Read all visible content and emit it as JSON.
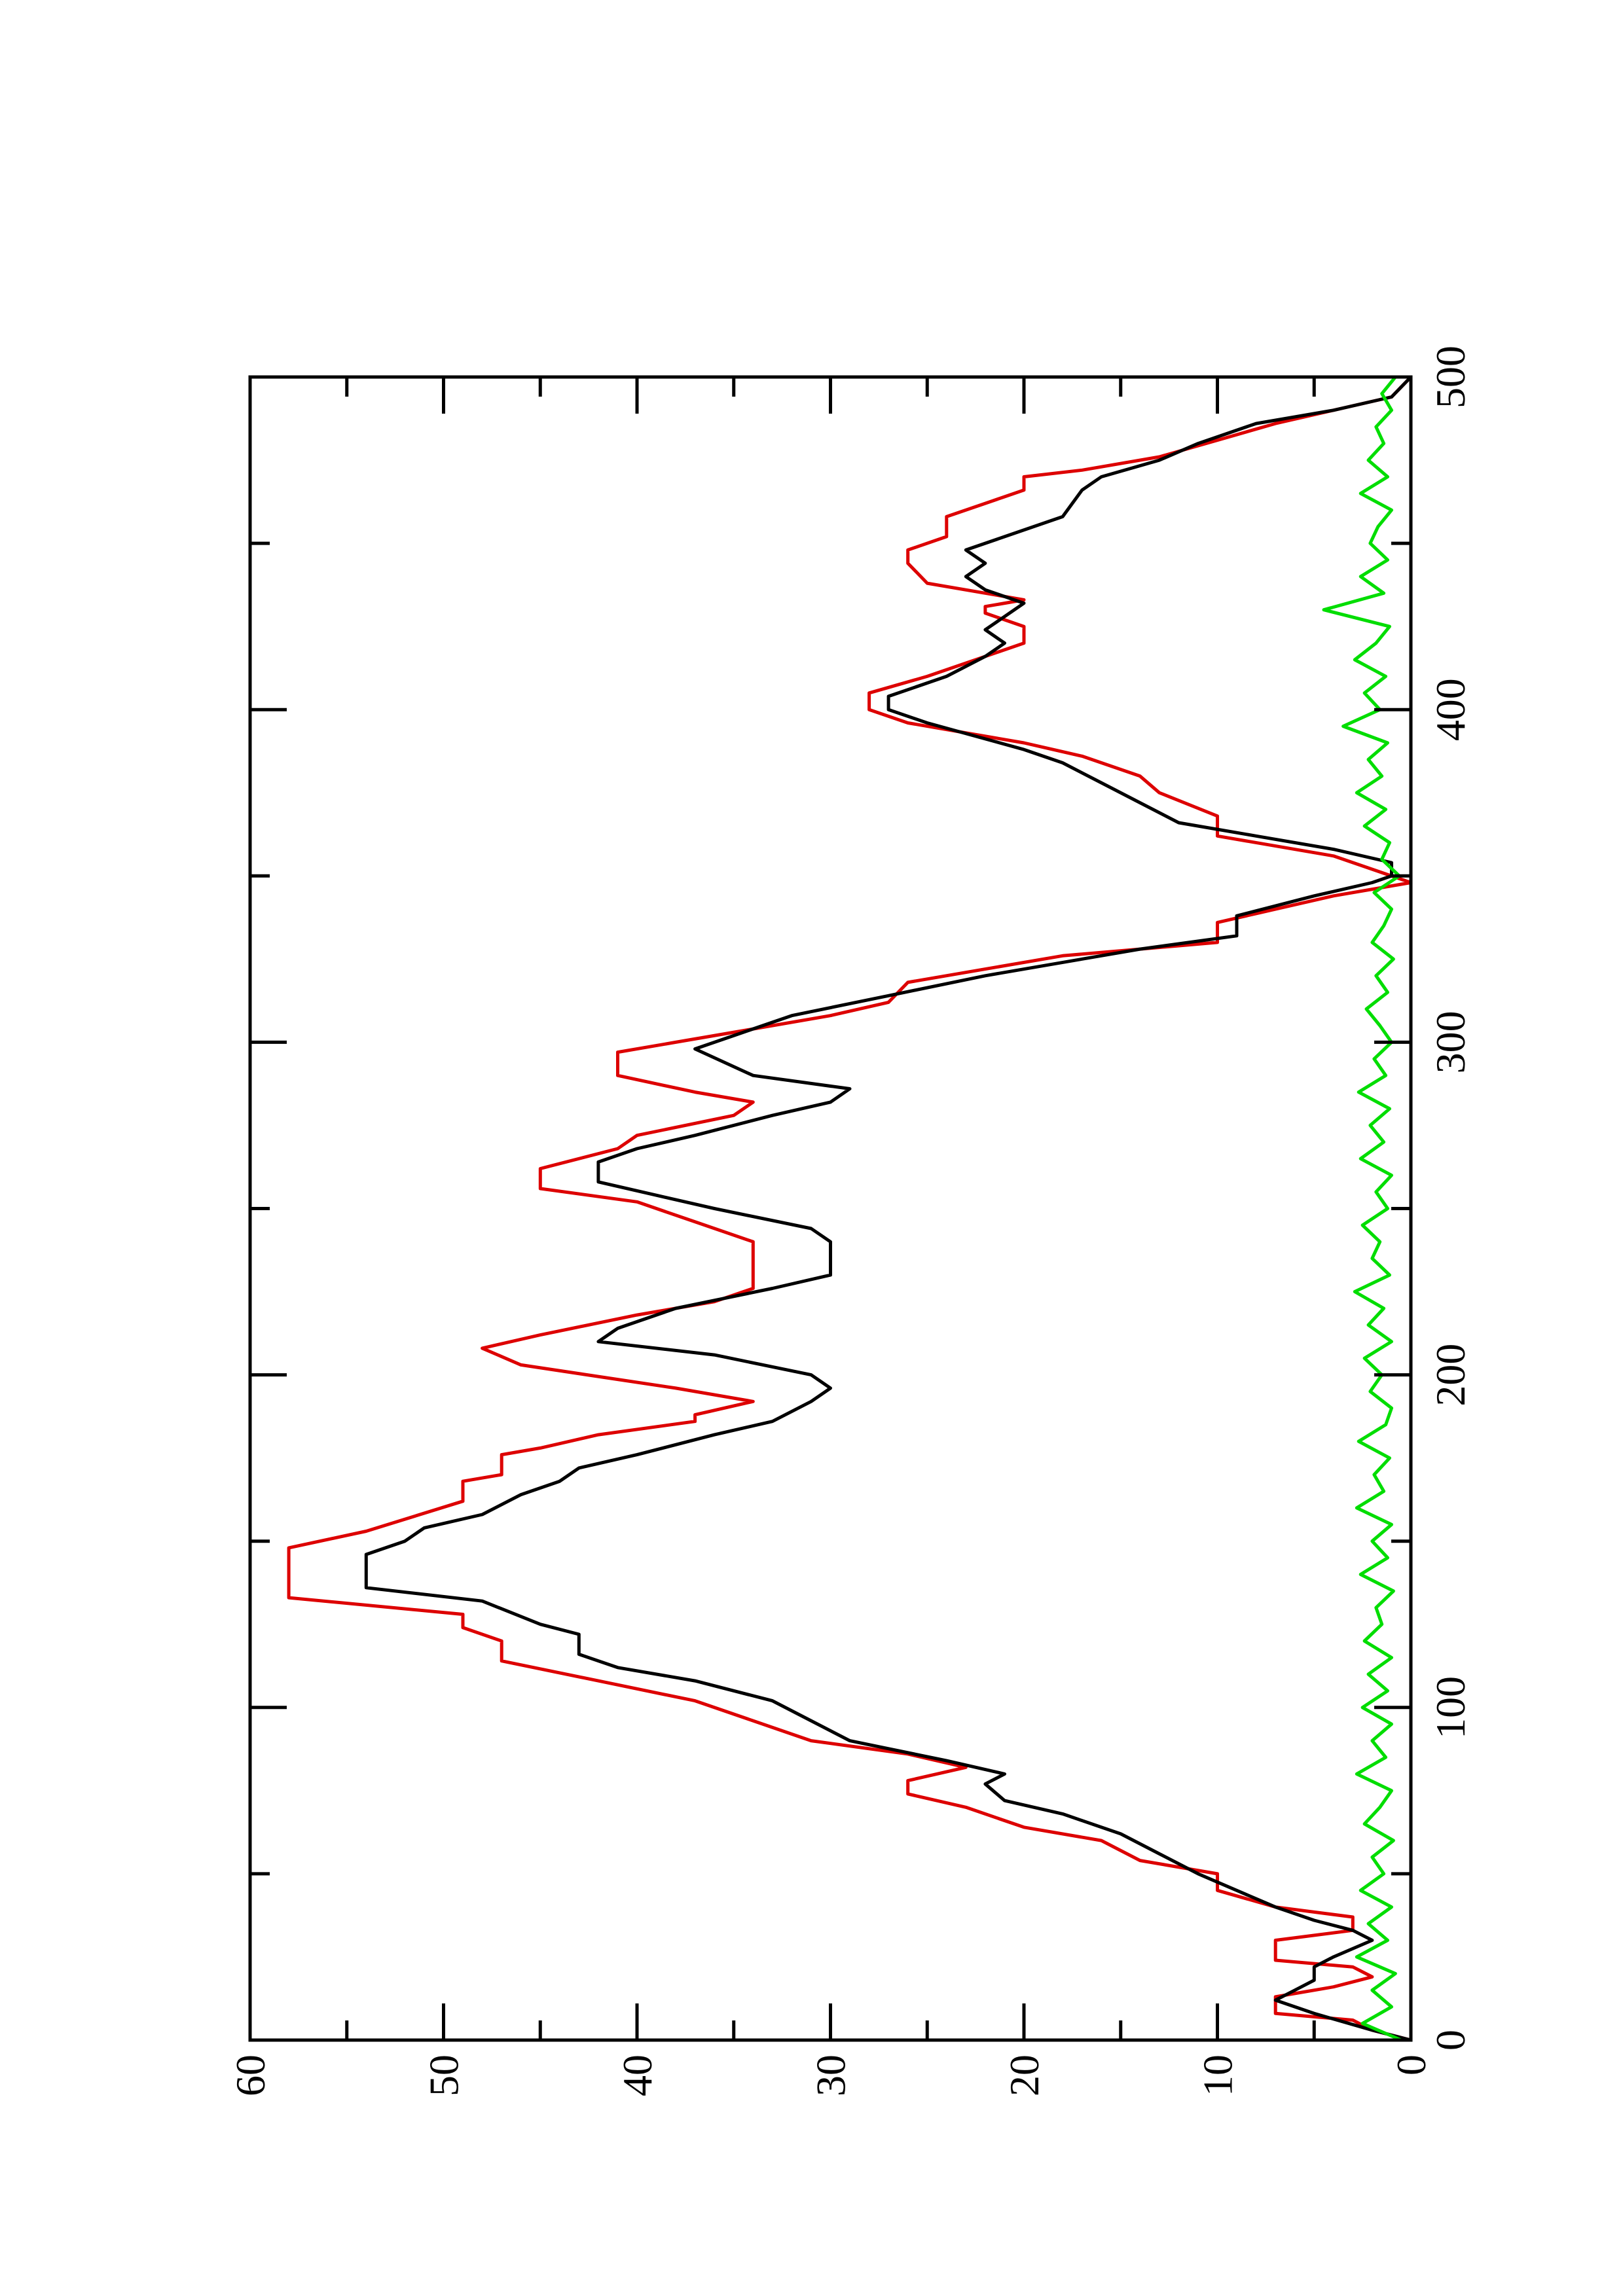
{
  "chart_data": {
    "type": "line",
    "xlim": [
      0,
      500
    ],
    "ylim": [
      0,
      60
    ],
    "xticks": [
      0,
      100,
      200,
      300,
      400,
      500
    ],
    "xminorticks": [
      50,
      150,
      250,
      350,
      450
    ],
    "yticks": [
      0,
      10,
      20,
      30,
      40,
      50,
      60
    ],
    "yminorticks": [
      5,
      15,
      25,
      35,
      45,
      55
    ],
    "series": [
      {
        "color": "#dd0000",
        "x": [
          0,
          3,
          6,
          8,
          13,
          16,
          19,
          22,
          24,
          30,
          33,
          37,
          40,
          45,
          50,
          54,
          60,
          64,
          70,
          74,
          78,
          82,
          86,
          90,
          96,
          102,
          108,
          114,
          120,
          124,
          128,
          133,
          148,
          153,
          162,
          168,
          170,
          176,
          178,
          182,
          186,
          188,
          192,
          196,
          203,
          208,
          212,
          218,
          222,
          226,
          240,
          246,
          252,
          256,
          262,
          268,
          272,
          278,
          282,
          285,
          290,
          297,
          300,
          304,
          308,
          312,
          318,
          326,
          330,
          336,
          340,
          344,
          348,
          352,
          356,
          362,
          368,
          375,
          380,
          386,
          390,
          396,
          400,
          405,
          410,
          420,
          425,
          429,
          431,
          433,
          435,
          438,
          444,
          448,
          452,
          458,
          462,
          466,
          470,
          472,
          476,
          481,
          486,
          490,
          494,
          500
        ],
        "values": [
          0,
          2,
          3,
          7,
          7,
          4,
          2,
          3,
          7,
          7,
          3,
          3,
          7,
          10,
          10,
          14,
          16,
          20,
          23,
          26,
          26,
          23,
          26,
          31,
          34,
          37,
          42,
          47,
          47,
          49,
          49,
          58,
          58,
          54,
          49,
          49,
          47,
          47,
          45,
          42,
          37,
          37,
          34,
          38,
          46,
          48,
          45,
          40,
          36,
          34,
          34,
          37,
          40,
          45,
          45,
          41,
          40,
          35,
          34,
          37,
          41,
          41,
          38,
          34,
          30,
          27,
          26,
          18,
          10,
          10,
          7,
          4,
          0,
          2,
          4,
          10,
          10,
          13,
          14,
          17,
          20,
          26,
          28,
          28,
          25,
          20,
          20,
          22,
          22,
          20,
          22,
          25,
          26,
          26,
          24,
          24,
          22,
          20,
          20,
          17,
          13,
          10,
          7,
          4,
          1,
          0
        ]
      },
      {
        "color": "#000000",
        "x": [
          0,
          3,
          8,
          12,
          15,
          18,
          22,
          25,
          30,
          33,
          36,
          40,
          45,
          50,
          56,
          62,
          68,
          72,
          77,
          80,
          84,
          90,
          96,
          102,
          108,
          112,
          116,
          122,
          125,
          132,
          136,
          146,
          150,
          154,
          158,
          164,
          168,
          172,
          176,
          182,
          186,
          192,
          196,
          200,
          206,
          210,
          214,
          220,
          226,
          230,
          240,
          244,
          250,
          254,
          258,
          264,
          268,
          272,
          278,
          282,
          286,
          290,
          298,
          302,
          308,
          314,
          320,
          328,
          332,
          338,
          344,
          348,
          350,
          354,
          358,
          362,
          366,
          372,
          378,
          384,
          388,
          396,
          400,
          404,
          410,
          416,
          420,
          424,
          428,
          432,
          436,
          440,
          444,
          448,
          452,
          458,
          466,
          470,
          475,
          480,
          486,
          490,
          494,
          500
        ],
        "values": [
          0,
          2,
          5,
          7,
          6,
          5,
          5,
          4,
          2,
          3,
          5,
          7,
          9,
          11,
          13,
          15,
          18,
          21,
          22,
          21,
          24,
          29,
          31,
          33,
          37,
          41,
          43,
          43,
          45,
          48,
          54,
          54,
          52,
          51,
          48,
          46,
          44,
          43,
          40,
          36,
          33,
          31,
          30,
          31,
          36,
          42,
          41,
          38,
          33,
          30,
          30,
          31,
          36,
          39,
          42,
          42,
          40,
          37,
          33,
          30,
          29,
          34,
          37,
          35,
          32,
          27,
          22,
          14,
          9,
          9,
          5,
          2,
          1,
          1,
          4,
          8,
          12,
          14,
          16,
          18,
          20,
          25,
          27,
          27,
          24,
          22,
          21,
          22,
          21,
          20,
          22,
          23,
          22,
          23,
          21,
          18,
          17,
          16,
          13,
          11,
          8,
          4,
          1,
          0
        ]
      },
      {
        "color": "#00dd00",
        "x": [
          0,
          5,
          10,
          15,
          20,
          25,
          30,
          35,
          40,
          45,
          50,
          55,
          60,
          65,
          70,
          75,
          80,
          85,
          90,
          95,
          100,
          105,
          110,
          115,
          120,
          125,
          130,
          135,
          140,
          145,
          150,
          155,
          160,
          165,
          170,
          175,
          180,
          185,
          190,
          195,
          200,
          205,
          210,
          215,
          220,
          225,
          230,
          235,
          240,
          245,
          250,
          255,
          260,
          265,
          270,
          275,
          280,
          285,
          290,
          295,
          300,
          305,
          310,
          315,
          320,
          325,
          330,
          335,
          340,
          345,
          350,
          355,
          360,
          365,
          370,
          375,
          380,
          385,
          390,
          395,
          400,
          405,
          410,
          415,
          420,
          425,
          430,
          435,
          440,
          445,
          450,
          455,
          460,
          465,
          470,
          475,
          480,
          485,
          490,
          495,
          500
        ],
        "values": [
          0.5,
          2.5,
          1,
          2,
          0.8,
          2.8,
          1.2,
          2.2,
          1,
          2.6,
          1.4,
          2,
          0.9,
          2.4,
          1.6,
          1,
          2.8,
          1.3,
          2,
          1,
          2.5,
          1.2,
          2.2,
          1,
          2.4,
          1.5,
          1.8,
          0.9,
          2.6,
          1.2,
          2,
          1,
          2.8,
          1.4,
          1.9,
          1.1,
          2.7,
          1.3,
          1,
          2.1,
          1.5,
          2.4,
          1,
          2.2,
          1.4,
          2.9,
          1.1,
          2,
          1.6,
          2.5,
          1.2,
          1.8,
          1,
          2.6,
          1.4,
          2.1,
          1.1,
          2.7,
          1.3,
          1.9,
          1,
          1.6,
          2.3,
          1.2,
          1.8,
          0.9,
          2,
          1.4,
          1,
          1.9,
          0.6,
          1.5,
          1.1,
          2.4,
          1.3,
          2.8,
          1.5,
          2.2,
          1.2,
          3.5,
          1.6,
          2.4,
          1.3,
          2.9,
          1.8,
          1.1,
          4.5,
          1.4,
          2.6,
          1.2,
          2.1,
          1.7,
          1,
          2.6,
          1.2,
          2.2,
          1.4,
          1.8,
          1,
          1.5,
          0.8
        ]
      }
    ]
  }
}
